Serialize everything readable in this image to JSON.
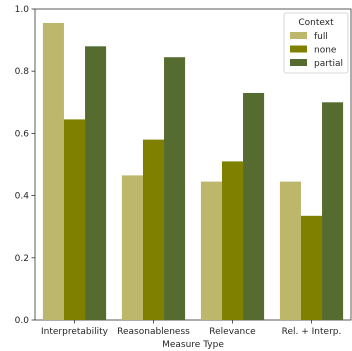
{
  "chart_data": {
    "type": "bar",
    "categories": [
      "Interpretability",
      "Reasonableness",
      "Relevance",
      "Rel. + Interp."
    ],
    "series": [
      {
        "name": "full",
        "color": "#bdb76b",
        "values": [
          0.955,
          0.465,
          0.445,
          0.445
        ]
      },
      {
        "name": "none",
        "color": "#808000",
        "values": [
          0.645,
          0.58,
          0.51,
          0.335
        ]
      },
      {
        "name": "partial",
        "color": "#556b2f",
        "values": [
          0.88,
          0.845,
          0.73,
          0.7
        ]
      }
    ],
    "xlabel": "Measure Type",
    "ylabel": "",
    "ylim": [
      0,
      1.0
    ],
    "yticks": [
      0.0,
      0.2,
      0.4,
      0.6,
      0.8,
      1.0
    ],
    "ytick_labels": [
      "0.0",
      "0.2",
      "0.4",
      "0.6",
      "0.8",
      "1.0"
    ],
    "legend": {
      "title": "Context",
      "placement": "top-right"
    },
    "grid": false
  }
}
